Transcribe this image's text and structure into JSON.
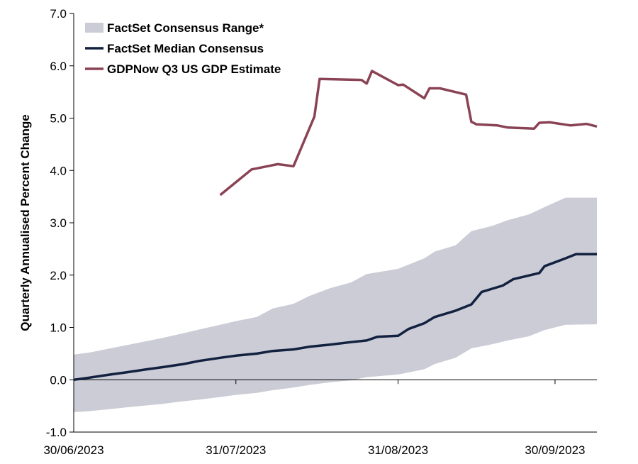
{
  "chart_data": {
    "type": "line",
    "title": "",
    "xlabel": "",
    "ylabel": "Quarterly Annualised Percent Change",
    "ylim": [
      -1.0,
      7.0
    ],
    "xlim": [
      "30/06/2023",
      "08/10/2023"
    ],
    "yticks": [
      "-1.0",
      "0.0",
      "1.0",
      "2.0",
      "3.0",
      "4.0",
      "5.0",
      "6.0",
      "7.0"
    ],
    "xticks": [
      "30/06/2023",
      "31/07/2023",
      "31/08/2023",
      "30/09/2023"
    ],
    "grid": false,
    "legend_position": "top-left",
    "colors": {
      "range": "#cbccd6",
      "median": "#12213f",
      "gdpnow": "#8a4354"
    },
    "series": [
      {
        "name": "FactSet Consensus Range*",
        "kind": "band",
        "points": [
          [
            "30/06/2023",
            -0.62,
            0.48
          ],
          [
            "03/07/2023",
            -0.6,
            0.52
          ],
          [
            "07/07/2023",
            -0.56,
            0.6
          ],
          [
            "10/07/2023",
            -0.53,
            0.66
          ],
          [
            "14/07/2023",
            -0.49,
            0.74
          ],
          [
            "17/07/2023",
            -0.46,
            0.8
          ],
          [
            "21/07/2023",
            -0.41,
            0.89
          ],
          [
            "24/07/2023",
            -0.38,
            0.96
          ],
          [
            "28/07/2023",
            -0.33,
            1.05
          ],
          [
            "31/07/2023",
            -0.29,
            1.12
          ],
          [
            "04/08/2023",
            -0.25,
            1.2
          ],
          [
            "07/08/2023",
            -0.2,
            1.36
          ],
          [
            "11/08/2023",
            -0.15,
            1.45
          ],
          [
            "14/08/2023",
            -0.1,
            1.6
          ],
          [
            "18/08/2023",
            -0.05,
            1.75
          ],
          [
            "22/08/2023",
            -0.01,
            1.86
          ],
          [
            "25/08/2023",
            0.05,
            2.02
          ],
          [
            "31/08/2023",
            0.1,
            2.12
          ],
          [
            "05/09/2023",
            0.2,
            2.32
          ],
          [
            "07/09/2023",
            0.3,
            2.45
          ],
          [
            "11/09/2023",
            0.42,
            2.57
          ],
          [
            "14/09/2023",
            0.6,
            2.84
          ],
          [
            "18/09/2023",
            0.68,
            2.94
          ],
          [
            "21/09/2023",
            0.75,
            3.05
          ],
          [
            "25/09/2023",
            0.83,
            3.16
          ],
          [
            "28/09/2023",
            0.95,
            3.3
          ],
          [
            "02/10/2023",
            1.05,
            3.48
          ],
          [
            "08/10/2023",
            1.06,
            3.48
          ]
        ]
      },
      {
        "name": "FactSet Median Consensus",
        "kind": "line",
        "points": [
          [
            "30/06/2023",
            0.0
          ],
          [
            "03/07/2023",
            0.04
          ],
          [
            "07/07/2023",
            0.1
          ],
          [
            "10/07/2023",
            0.14
          ],
          [
            "14/07/2023",
            0.2
          ],
          [
            "17/07/2023",
            0.24
          ],
          [
            "21/07/2023",
            0.3
          ],
          [
            "24/07/2023",
            0.36
          ],
          [
            "28/07/2023",
            0.42
          ],
          [
            "31/07/2023",
            0.46
          ],
          [
            "04/08/2023",
            0.5
          ],
          [
            "07/08/2023",
            0.55
          ],
          [
            "11/08/2023",
            0.58
          ],
          [
            "14/08/2023",
            0.63
          ],
          [
            "18/08/2023",
            0.67
          ],
          [
            "22/08/2023",
            0.72
          ],
          [
            "25/08/2023",
            0.75
          ],
          [
            "27/08/2023",
            0.82
          ],
          [
            "31/08/2023",
            0.84
          ],
          [
            "02/09/2023",
            0.97
          ],
          [
            "05/09/2023",
            1.08
          ],
          [
            "07/09/2023",
            1.2
          ],
          [
            "11/09/2023",
            1.32
          ],
          [
            "14/09/2023",
            1.44
          ],
          [
            "16/09/2023",
            1.68
          ],
          [
            "20/09/2023",
            1.8
          ],
          [
            "22/09/2023",
            1.92
          ],
          [
            "27/09/2023",
            2.04
          ],
          [
            "28/09/2023",
            2.17
          ],
          [
            "02/10/2023",
            2.32
          ],
          [
            "04/10/2023",
            2.4
          ],
          [
            "08/10/2023",
            2.4
          ]
        ]
      },
      {
        "name": "GDPNow Q3 US GDP Estimate",
        "kind": "line",
        "points": [
          [
            "28/07/2023",
            3.53
          ],
          [
            "03/08/2023",
            4.02
          ],
          [
            "08/08/2023",
            4.12
          ],
          [
            "11/08/2023",
            4.08
          ],
          [
            "15/08/2023",
            5.03
          ],
          [
            "16/08/2023",
            5.75
          ],
          [
            "24/08/2023",
            5.73
          ],
          [
            "25/08/2023",
            5.66
          ],
          [
            "26/08/2023",
            5.9
          ],
          [
            "31/08/2023",
            5.63
          ],
          [
            "01/09/2023",
            5.64
          ],
          [
            "05/09/2023",
            5.38
          ],
          [
            "06/09/2023",
            5.57
          ],
          [
            "08/09/2023",
            5.57
          ],
          [
            "13/09/2023",
            5.45
          ],
          [
            "14/09/2023",
            4.93
          ],
          [
            "15/09/2023",
            4.88
          ],
          [
            "19/09/2023",
            4.86
          ],
          [
            "21/09/2023",
            4.82
          ],
          [
            "26/09/2023",
            4.8
          ],
          [
            "27/09/2023",
            4.91
          ],
          [
            "29/09/2023",
            4.92
          ],
          [
            "03/10/2023",
            4.86
          ],
          [
            "06/10/2023",
            4.89
          ],
          [
            "08/10/2023",
            4.84
          ]
        ]
      }
    ]
  }
}
